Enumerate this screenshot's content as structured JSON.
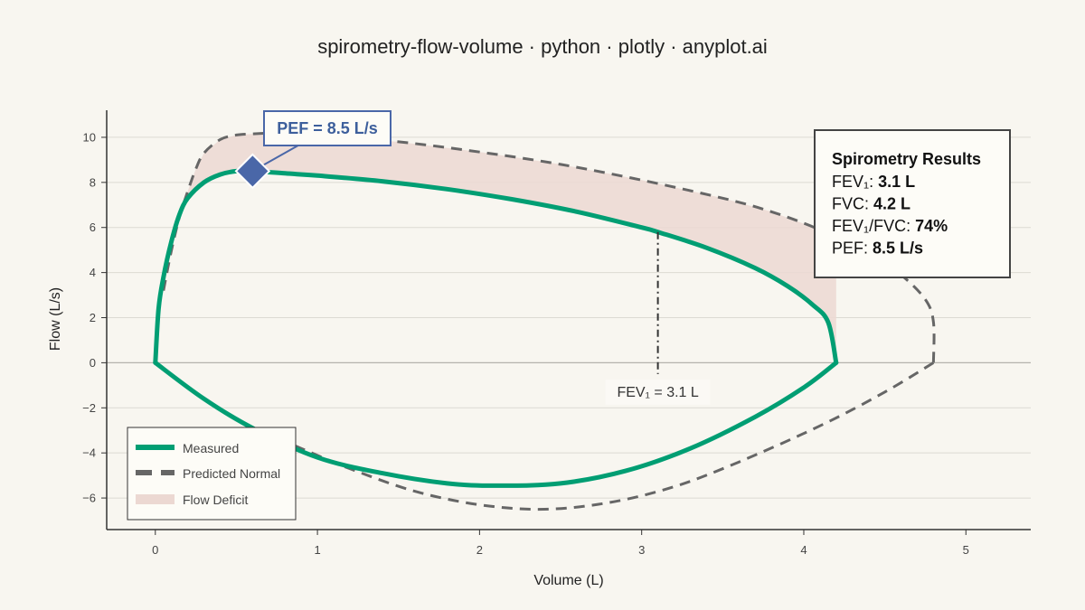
{
  "chart_data": {
    "type": "line",
    "title": "spirometry-flow-volume · python · plotly · anyplot.ai",
    "xlabel": "Volume (L)",
    "ylabel": "Flow (L/s)",
    "xlim": [
      -0.3,
      5.4
    ],
    "ylim": [
      -7.4,
      11.2
    ],
    "xticks": [
      0,
      1,
      2,
      3,
      4,
      5
    ],
    "yticks": [
      10,
      8,
      6,
      4,
      2,
      0,
      -2,
      -4,
      -6
    ],
    "ytick_labels": [
      "10",
      "8",
      "6",
      "4",
      "2",
      "0",
      "−2",
      "−4",
      "−6"
    ],
    "grid": true,
    "legend_position": "bottom-left",
    "colors": {
      "measured": "#009e73",
      "predicted": "#666666",
      "deficit": "#ecd8d2",
      "pef_marker": "#4a67a8"
    },
    "series": [
      {
        "name": "Measured",
        "style": "solid",
        "expiratory": {
          "x": [
            0,
            0.02,
            0.05,
            0.1,
            0.15,
            0.2,
            0.3,
            0.4,
            0.5,
            0.6,
            0.8,
            1.0,
            1.4,
            1.8,
            2.2,
            2.6,
            3.0,
            3.1,
            3.4,
            3.7,
            3.9,
            4.05,
            4.15,
            4.2
          ],
          "y": [
            0,
            2.4,
            3.8,
            5.4,
            6.6,
            7.3,
            8.0,
            8.35,
            8.5,
            8.5,
            8.4,
            8.3,
            8.05,
            7.7,
            7.25,
            6.7,
            6.0,
            5.8,
            5.1,
            4.2,
            3.4,
            2.6,
            1.8,
            0
          ]
        },
        "inspiratory": {
          "x": [
            0,
            0.3,
            0.6,
            1.0,
            1.4,
            1.8,
            2.1,
            2.5,
            2.9,
            3.3,
            3.7,
            4.0,
            4.2
          ],
          "y": [
            0,
            -1.6,
            -2.9,
            -4.2,
            -4.9,
            -5.35,
            -5.45,
            -5.35,
            -4.8,
            -3.8,
            -2.4,
            -1.1,
            0
          ]
        }
      },
      {
        "name": "Predicted Normal",
        "style": "dashed",
        "expiratory": {
          "x": [
            0.05,
            0.1,
            0.15,
            0.2,
            0.25,
            0.3,
            0.4,
            0.5,
            0.6,
            0.8,
            1.0,
            1.5,
            2.0,
            2.5,
            3.0,
            3.5,
            3.8,
            4.1,
            4.4,
            4.6,
            4.75,
            4.8,
            4.8
          ],
          "y": [
            3.2,
            5.0,
            6.5,
            7.6,
            8.6,
            9.3,
            9.9,
            10.1,
            10.15,
            10.2,
            10.1,
            9.8,
            9.35,
            8.8,
            8.1,
            7.3,
            6.7,
            5.9,
            4.9,
            3.9,
            2.8,
            1.8,
            0
          ]
        },
        "inspiratory": {
          "x": [
            4.8,
            4.5,
            4.1,
            3.6,
            3.2,
            2.8,
            2.4,
            2.0,
            1.6,
            1.2,
            0.9,
            0.6
          ],
          "y": [
            0,
            -1.3,
            -2.8,
            -4.4,
            -5.5,
            -6.2,
            -6.5,
            -6.3,
            -5.7,
            -4.7,
            -3.8,
            -2.9
          ]
        }
      },
      {
        "name": "Flow Deficit",
        "style": "fill"
      }
    ],
    "annotations": {
      "pef": {
        "label": "PEF = 8.5 L/s",
        "x": 0.6,
        "y": 8.5
      },
      "fev1": {
        "label": "FEV₁ = 3.1 L",
        "x": 3.1,
        "y_top": 5.8,
        "y_bottom": -0.5
      }
    }
  },
  "results": {
    "heading": "Spirometry Results",
    "rows": [
      {
        "label": "FEV₁: ",
        "value": "3.1 L"
      },
      {
        "label": "FVC: ",
        "value": "4.2 L"
      },
      {
        "label": "FEV₁/FVC: ",
        "value": "74%"
      },
      {
        "label": "PEF: ",
        "value": "8.5 L/s"
      }
    ]
  }
}
